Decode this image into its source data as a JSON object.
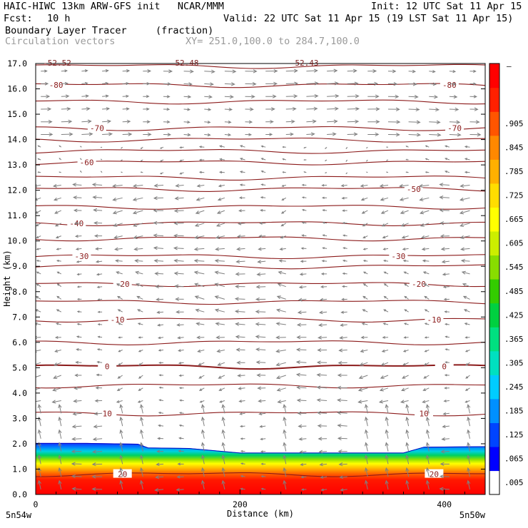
{
  "header": {
    "title_left": "HAIC-HIWC 13km ARW-GFS init   NCAR/MMM",
    "init": "Init: 12 UTC Sat 11 Apr 15",
    "fcst_label": "Fcst:",
    "fcst_value": "10 h",
    "valid": "Valid: 22 UTC Sat 11 Apr 15 (19 LST Sat 11 Apr 15)",
    "field_name": "Boundary Layer Tracer",
    "field_unit": "(fraction)",
    "overlay_name": "Circulation vectors",
    "xy_range": "XY= 251.0,100.0 to 284.7,100.0",
    "top_labels": [
      "-52.52",
      "52.48",
      "52.43"
    ]
  },
  "colors": {
    "contour": "#8b1a1a",
    "vector": "#808080",
    "text": "#000000",
    "subtle_text": "#9a9a9a"
  },
  "chart_data": {
    "type": "heatmap",
    "title": "Boundary Layer Tracer (fraction)",
    "xlabel": "Distance (km)",
    "ylabel": "Height (km)",
    "xlim": [
      0,
      440
    ],
    "ylim": [
      0,
      17
    ],
    "x_ticks": [
      0,
      200,
      400
    ],
    "y_ticks": [
      "0.0",
      "1.0",
      "2.0",
      "3.0",
      "4.0",
      "5.0",
      "6.0",
      "7.0",
      "8.0",
      "9.0",
      "10.0",
      "11.0",
      "12.0",
      "13.0",
      "14.0",
      "15.0",
      "16.0",
      "17.0"
    ],
    "x_endpoint_labels": [
      "5n54w",
      "5n50w"
    ],
    "colorbar": {
      "labels": [
        ".005",
        ".065",
        ".125",
        ".185",
        ".245",
        ".305",
        ".365",
        ".425",
        ".485",
        ".545",
        ".605",
        ".665",
        ".725",
        ".785",
        ".845",
        ".905"
      ],
      "top_label": "–",
      "colors": [
        "#ffffff",
        "#0000ff",
        "#0044ff",
        "#0090ff",
        "#00ccff",
        "#00e0c0",
        "#00e080",
        "#00d040",
        "#33cc00",
        "#88dd00",
        "#ccee00",
        "#ffff00",
        "#ffdd00",
        "#ffb000",
        "#ff8800",
        "#ff5500",
        "#ff2000",
        "#ff0000"
      ]
    },
    "bl_top_profile": [
      {
        "x": 0,
        "z": 2.03
      },
      {
        "x": 50,
        "z": 2.03
      },
      {
        "x": 100,
        "z": 2.0
      },
      {
        "x": 110,
        "z": 1.85
      },
      {
        "x": 150,
        "z": 1.83
      },
      {
        "x": 200,
        "z": 1.65
      },
      {
        "x": 300,
        "z": 1.65
      },
      {
        "x": 360,
        "z": 1.65
      },
      {
        "x": 380,
        "z": 1.88
      },
      {
        "x": 440,
        "z": 1.9
      }
    ],
    "temperature_contours": [
      {
        "label": "-80",
        "z": 16.15,
        "label_x": [
          20,
          405
        ]
      },
      {
        "label": "-70",
        "z": 14.45,
        "label_x": [
          60,
          410
        ]
      },
      {
        "label": "-60",
        "z": 13.1,
        "label_x": [
          50
        ]
      },
      {
        "label": "-50",
        "z": 12.05,
        "label_x": [
          370
        ]
      },
      {
        "label": "-40",
        "z": 10.7,
        "label_x": [
          40
        ]
      },
      {
        "label": "-30",
        "z": 9.4,
        "label_x": [
          45,
          355
        ]
      },
      {
        "label": "-20",
        "z": 8.3,
        "label_x": [
          85,
          375
        ]
      },
      {
        "label": "-10",
        "z": 6.9,
        "label_x": [
          80,
          390
        ]
      },
      {
        "label": "0",
        "z": 5.05,
        "label_x": [
          70,
          400
        ]
      },
      {
        "label": "10",
        "z": 3.2,
        "label_x": [
          70,
          380
        ]
      },
      {
        "label": "20",
        "z": 0.8,
        "label_x": [
          85,
          390
        ]
      }
    ],
    "extra_contour_levels": [
      16.9,
      15.5,
      14.0,
      13.55,
      12.5,
      11.35,
      10.1,
      9.0,
      7.6,
      6.0,
      4.3
    ],
    "circulation": {
      "upper_flow": "eastward (z > 13.8 km)",
      "lower_flow": "westward (z < 13.8 km)",
      "updraft_columns_km": [
        15,
        95,
        160,
        190,
        250,
        320,
        355,
        385,
        420
      ]
    }
  }
}
